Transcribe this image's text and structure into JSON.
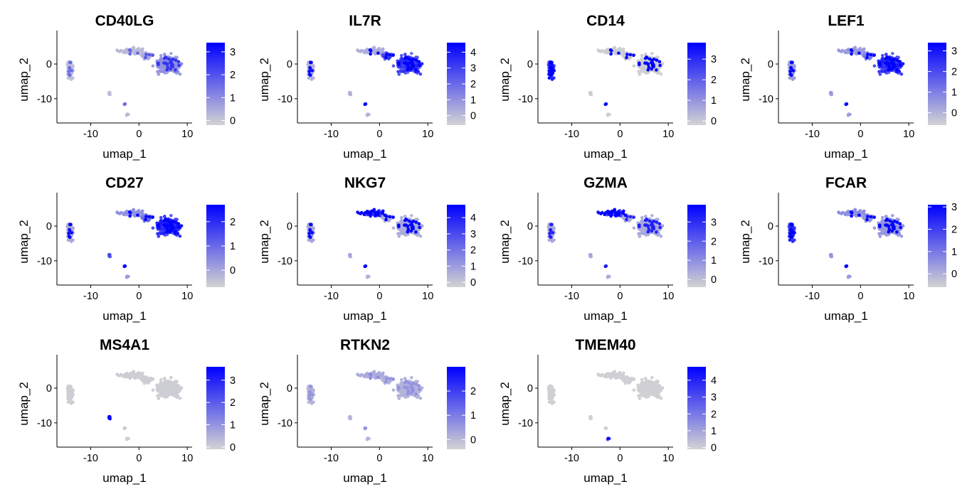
{
  "chart_data": {
    "type": "scatter",
    "description_units": "UMAP embedding coordinates; color = expression level",
    "xlabel": "umap_1",
    "ylabel": "umap_2",
    "xlim": [
      -17,
      11
    ],
    "ylim": [
      -17,
      8
    ],
    "xticks": [
      -10,
      0,
      10
    ],
    "yticks": [
      0,
      -10
    ],
    "color_low": "#d3d3d3",
    "color_high": "#0000ff",
    "panels": [
      {
        "title": "CD40LG",
        "cmin": -0.2,
        "cmax": 3.4,
        "cticks": [
          0,
          1,
          2,
          3
        ],
        "pattern": "CD40LG"
      },
      {
        "title": "IL7R",
        "cmin": -0.6,
        "cmax": 4.6,
        "cticks": [
          0,
          1,
          2,
          3,
          4
        ],
        "pattern": "IL7R"
      },
      {
        "title": "CD14",
        "cmin": -0.2,
        "cmax": 3.8,
        "cticks": [
          0,
          1,
          2,
          3
        ],
        "pattern": "CD14"
      },
      {
        "title": "LEF1",
        "cmin": -0.6,
        "cmax": 3.4,
        "cticks": [
          0,
          1,
          2,
          3
        ],
        "pattern": "LEF1"
      },
      {
        "title": "CD27",
        "cmin": -0.7,
        "cmax": 2.7,
        "cticks": [
          0,
          1,
          2
        ],
        "pattern": "CD27"
      },
      {
        "title": "NKG7",
        "cmin": -0.3,
        "cmax": 4.8,
        "cticks": [
          0,
          1,
          2,
          3,
          4
        ],
        "pattern": "NKG7"
      },
      {
        "title": "GZMA",
        "cmin": -0.4,
        "cmax": 3.9,
        "cticks": [
          0,
          1,
          2,
          3
        ],
        "pattern": "GZMA"
      },
      {
        "title": "FCAR",
        "cmin": -0.6,
        "cmax": 3.1,
        "cticks": [
          0,
          1,
          2,
          3
        ],
        "pattern": "FCAR"
      },
      {
        "title": "MS4A1",
        "cmin": -0.1,
        "cmax": 3.6,
        "cticks": [
          0,
          1,
          2,
          3
        ],
        "pattern": "MS4A1"
      },
      {
        "title": "RTKN2",
        "cmin": -0.4,
        "cmax": 3.0,
        "cticks": [
          0,
          1,
          2
        ],
        "pattern": "RTKN2"
      },
      {
        "title": "TMEM40",
        "cmin": -0.1,
        "cmax": 4.8,
        "cticks": [
          0,
          1,
          2,
          3,
          4
        ],
        "pattern": "TMEM40"
      }
    ]
  }
}
